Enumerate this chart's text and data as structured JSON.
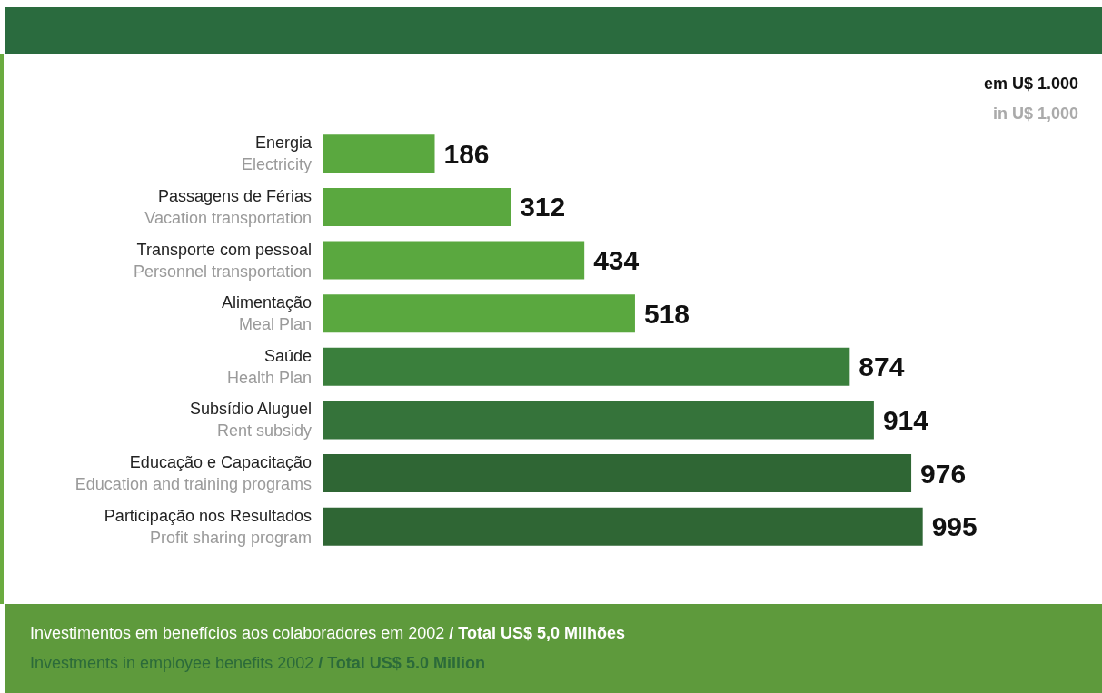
{
  "chart_data": {
    "type": "bar",
    "orientation": "horizontal",
    "categories": [
      "Energia\nElectricity",
      "Passagens de Férias\nVacation transportation",
      "Transporte com pessoal\nPersonnel transportation",
      "Alimentação\nMeal Plan",
      "Saúde\nHealth Plan",
      "Subsídio Aluguel\nRent subsidy",
      "Educação e Capacitação\nEducation and training programs",
      "Participação nos Resultados\nProfit sharing program"
    ],
    "values": [
      186,
      312,
      434,
      518,
      874,
      914,
      976,
      995
    ],
    "colors": [
      "#5aa83f",
      "#5aa83f",
      "#5aa83f",
      "#5aa83f",
      "#3a7f3c",
      "#35733a",
      "#2f6634",
      "#2f6634"
    ],
    "data_labels": true,
    "annotations": [
      "em U$ 1.000",
      "in U$ 1,000",
      "Investimentos em benefícios aos colaboradores em 2002",
      "/ Total US$ 5,0 Milhões",
      "Investments in employee benefits 2002",
      "/ Total US$ 5.0 Million"
    ]
  }
}
